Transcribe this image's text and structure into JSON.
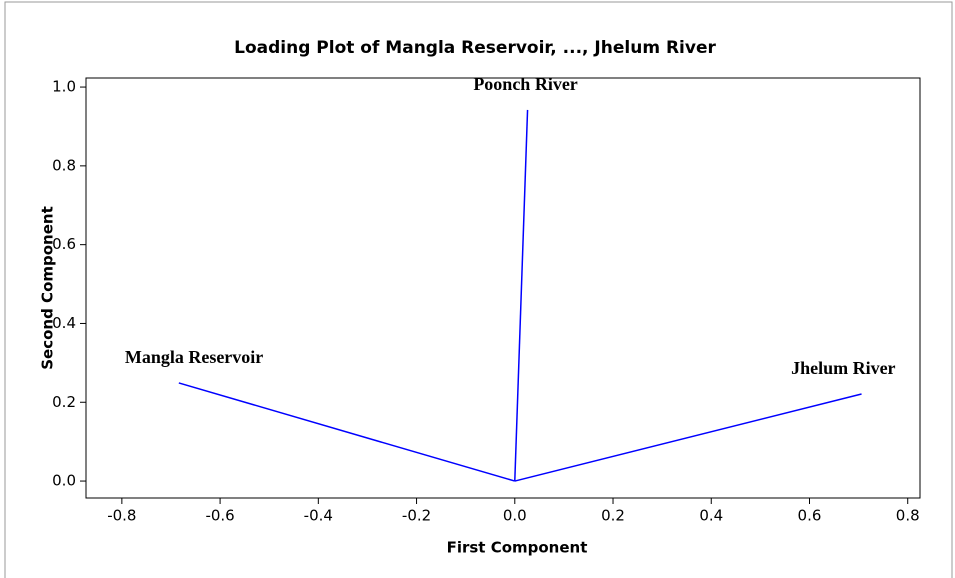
{
  "chart_data": {
    "type": "loading",
    "title": "Loading Plot of Mangla Reservoir, ..., Jhelum River",
    "xlabel": "First Component",
    "ylabel": "Second Component",
    "series": [
      {
        "name": "Mangla Reservoir",
        "x": -0.684,
        "y": 0.249
      },
      {
        "name": "Poonch River",
        "x": 0.026,
        "y": 0.942
      },
      {
        "name": "Jhelum River",
        "x": 0.706,
        "y": 0.221
      }
    ],
    "color": "#0000ff",
    "xlim": [
      -0.873,
      0.825
    ],
    "ylim": [
      -0.043,
      1.023
    ],
    "xticks": [
      -0.8,
      -0.6,
      -0.4,
      -0.2,
      {
        "value": 0,
        "label": "0.0"
      },
      0.2,
      0.4,
      0.6,
      0.8
    ],
    "yticks": [
      {
        "value": 0,
        "label": "0.0"
      },
      0.2,
      0.4,
      0.6,
      0.8,
      {
        "value": 1,
        "label": "1.0"
      }
    ]
  }
}
